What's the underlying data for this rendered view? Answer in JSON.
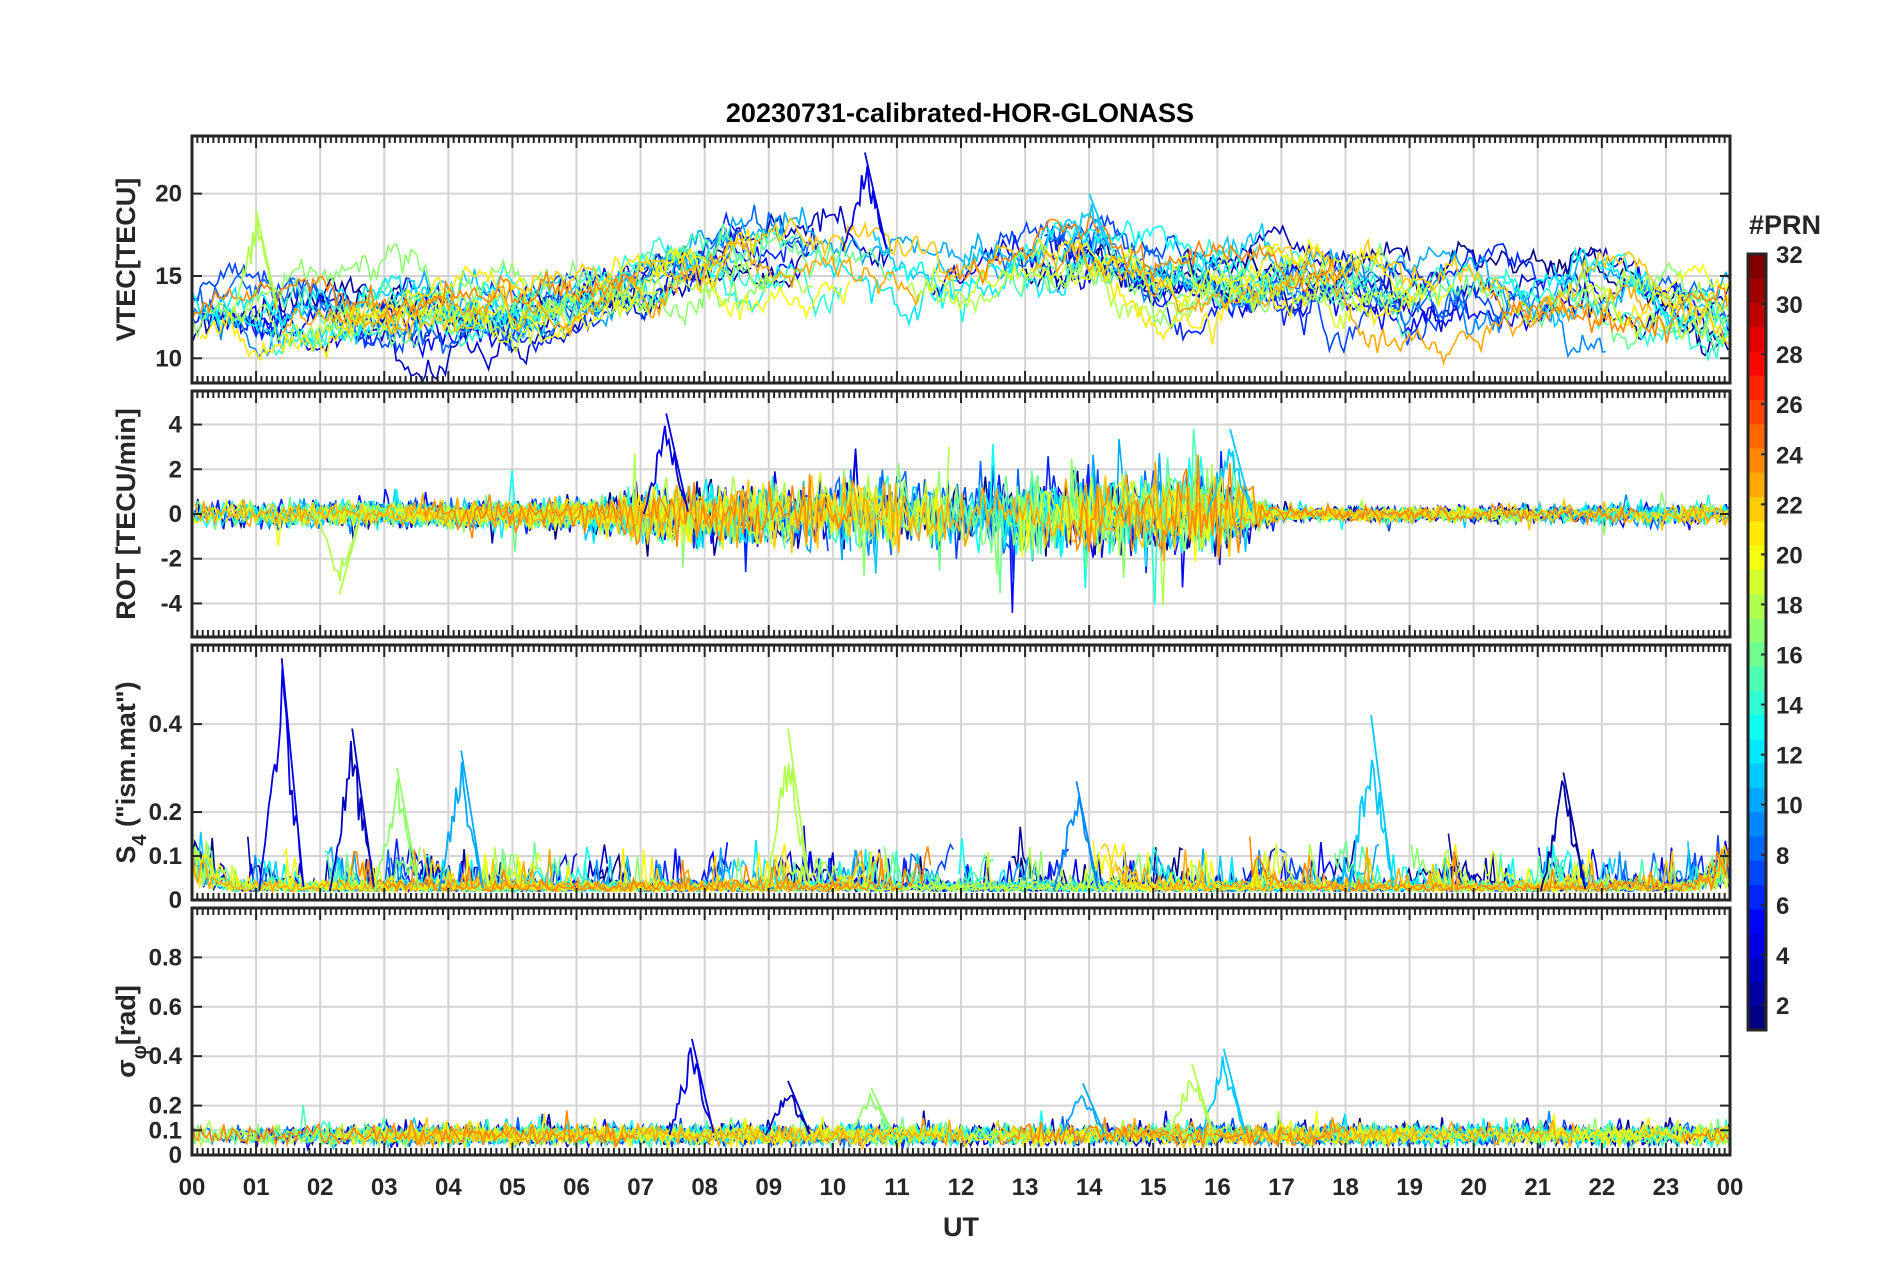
{
  "chart_data": {
    "type": "line",
    "title": "20230731-calibrated-HOR-GLONASS",
    "xlabel": "UT",
    "x_tick_labels": [
      "00",
      "01",
      "02",
      "03",
      "04",
      "05",
      "06",
      "07",
      "08",
      "09",
      "10",
      "11",
      "12",
      "13",
      "14",
      "15",
      "16",
      "17",
      "18",
      "19",
      "20",
      "21",
      "22",
      "23",
      "00"
    ],
    "xlim": [
      0,
      24
    ],
    "grid": true,
    "colorbar": {
      "title": "#PRN",
      "colormap": "jet",
      "range": [
        1,
        32
      ],
      "tick_labels": [
        "2",
        "4",
        "6",
        "8",
        "10",
        "12",
        "14",
        "16",
        "18",
        "20",
        "22",
        "24",
        "26",
        "28",
        "30",
        "32"
      ]
    },
    "panels": [
      {
        "name": "vtec",
        "ylabel": "VTEC[TECU]",
        "ylim": [
          8.5,
          23.5
        ],
        "y_ticks": [
          10,
          15,
          20
        ],
        "series_profile": {
          "background": [
            [
              0,
              12.5
            ],
            [
              2,
              13
            ],
            [
              4,
              13.5
            ],
            [
              5,
              13
            ],
            [
              6,
              13.5
            ],
            [
              7,
              15
            ],
            [
              8,
              16
            ],
            [
              9,
              16.5
            ],
            [
              10,
              17
            ],
            [
              11,
              16
            ],
            [
              12,
              15
            ],
            [
              13,
              16
            ],
            [
              14,
              16.5
            ],
            [
              15,
              15
            ],
            [
              16,
              15
            ],
            [
              17,
              15
            ],
            [
              18,
              14.5
            ],
            [
              19,
              14
            ],
            [
              20,
              14
            ],
            [
              21,
              14
            ],
            [
              22,
              14.5
            ],
            [
              23,
              13.5
            ],
            [
              24,
              13
            ]
          ],
          "peak": [
            [
              10.5,
              22.5
            ],
            [
              14,
              20
            ],
            [
              1,
              19
            ]
          ]
        }
      },
      {
        "name": "rot",
        "ylabel": "ROT [TECU/min]",
        "ylim": [
          -5.5,
          5.5
        ],
        "y_ticks": [
          -4,
          -2,
          0,
          2,
          4
        ],
        "series_profile": {
          "activity": [
            [
              0,
              0.5
            ],
            [
              3,
              0.5
            ],
            [
              6,
              0.6
            ],
            [
              7,
              1.0
            ],
            [
              8,
              1.2
            ],
            [
              10,
              1.3
            ],
            [
              12,
              1.4
            ],
            [
              13,
              1.5
            ],
            [
              14,
              1.6
            ],
            [
              15,
              1.4
            ],
            [
              16,
              1.9
            ],
            [
              16.7,
              0.6
            ],
            [
              17,
              0.25
            ],
            [
              20,
              0.3
            ],
            [
              22,
              0.4
            ],
            [
              24,
              0.4
            ]
          ],
          "peak": [
            [
              7.4,
              4.5
            ],
            [
              16.2,
              3.8
            ],
            [
              2.3,
              -3.6
            ]
          ]
        }
      },
      {
        "name": "s4",
        "ylabel": "S4 (\"ism.mat\")",
        "ylabel_main": "S",
        "ylabel_sub": "4",
        "ylabel_rest": " (\"ism.mat\")",
        "ylim": [
          0,
          0.58
        ],
        "y_ticks": [
          0,
          0.1,
          0.2,
          0.4
        ],
        "series_profile": {
          "baseline": 0.02,
          "peak": [
            [
              1.4,
              0.55
            ],
            [
              18.4,
              0.42
            ],
            [
              9.3,
              0.39
            ],
            [
              2.5,
              0.39
            ],
            [
              4.2,
              0.34
            ],
            [
              3.2,
              0.3
            ],
            [
              21.4,
              0.29
            ],
            [
              13.8,
              0.27
            ]
          ]
        }
      },
      {
        "name": "sigma-phi",
        "ylabel": "σφ[rad]",
        "ylabel_main": "σ",
        "ylabel_sub": "φ",
        "ylabel_rest": "[rad]",
        "ylim": [
          0,
          1.0
        ],
        "y_ticks": [
          0,
          0.1,
          0.2,
          0.4,
          0.6,
          0.8
        ],
        "series_profile": {
          "baseline": 0.08,
          "peak": [
            [
              7.8,
              0.47
            ],
            [
              16.1,
              0.43
            ],
            [
              15.6,
              0.37
            ],
            [
              9.3,
              0.3
            ],
            [
              13.9,
              0.29
            ],
            [
              10.6,
              0.27
            ]
          ]
        }
      }
    ]
  }
}
